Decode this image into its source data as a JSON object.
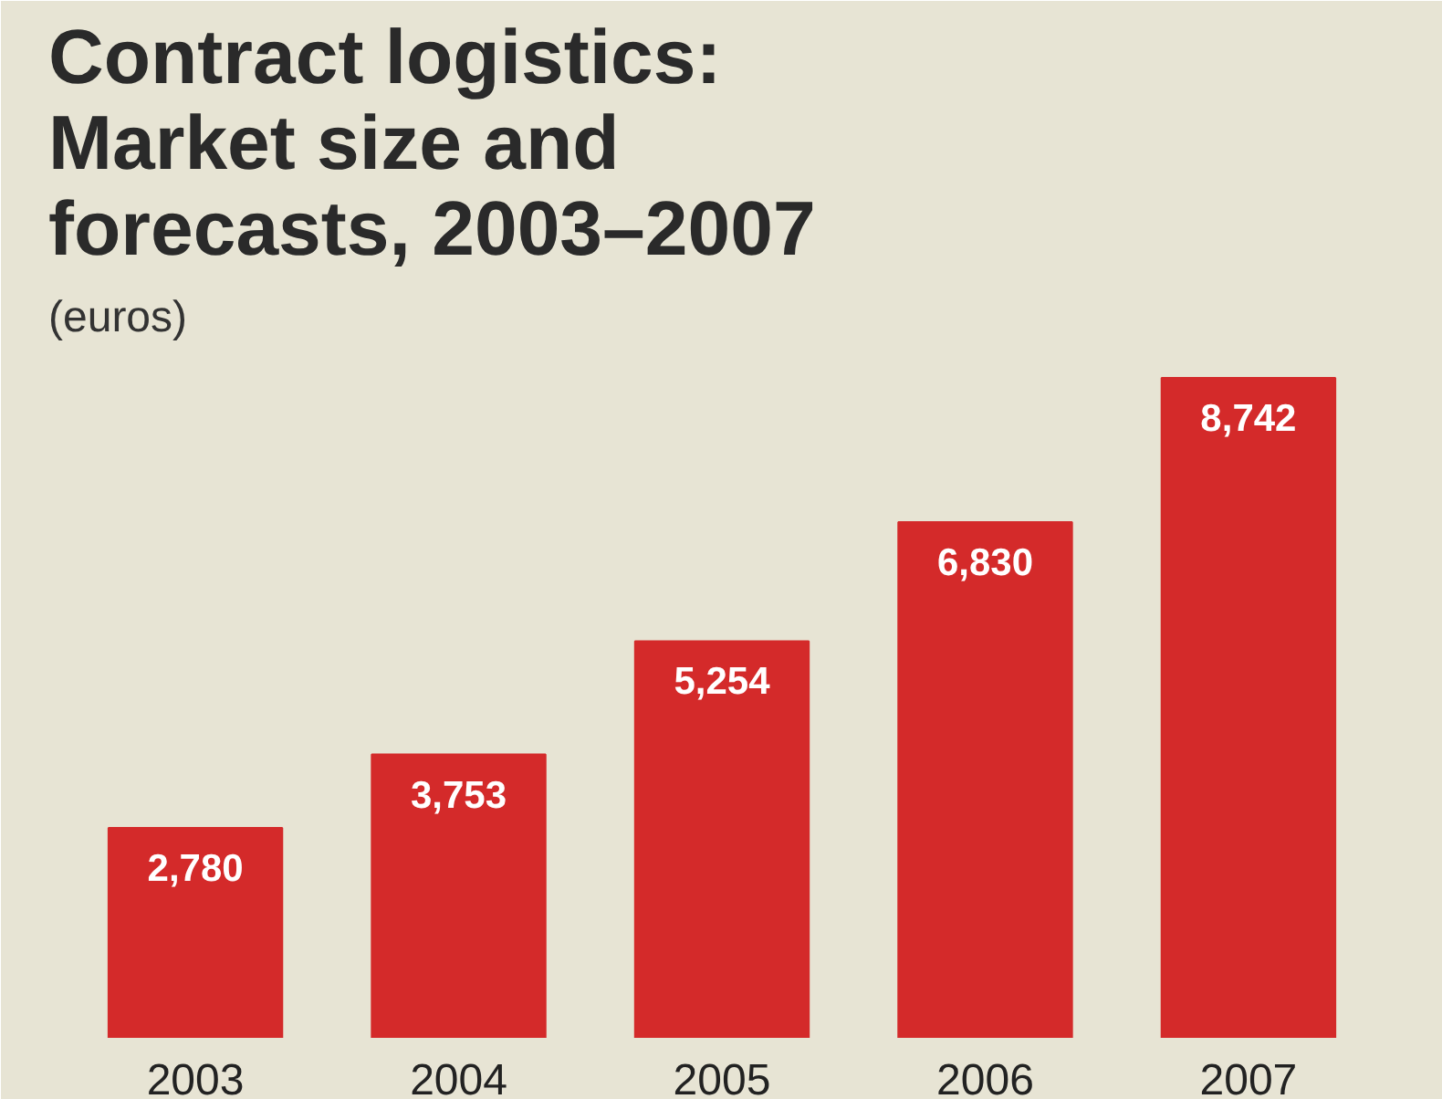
{
  "chart_data": {
    "type": "bar",
    "title": "Contract logistics: Market size and forecasts, 2003–2007",
    "subtitle": "(euros)",
    "categories": [
      "2003",
      "2004",
      "2005",
      "2006",
      "2007"
    ],
    "values": [
      2780,
      3753,
      5254,
      6830,
      8742
    ],
    "value_labels": [
      "2,780",
      "3,753",
      "5,254",
      "6,830",
      "8,742"
    ],
    "color": "#d42a2a",
    "grid": false
  }
}
